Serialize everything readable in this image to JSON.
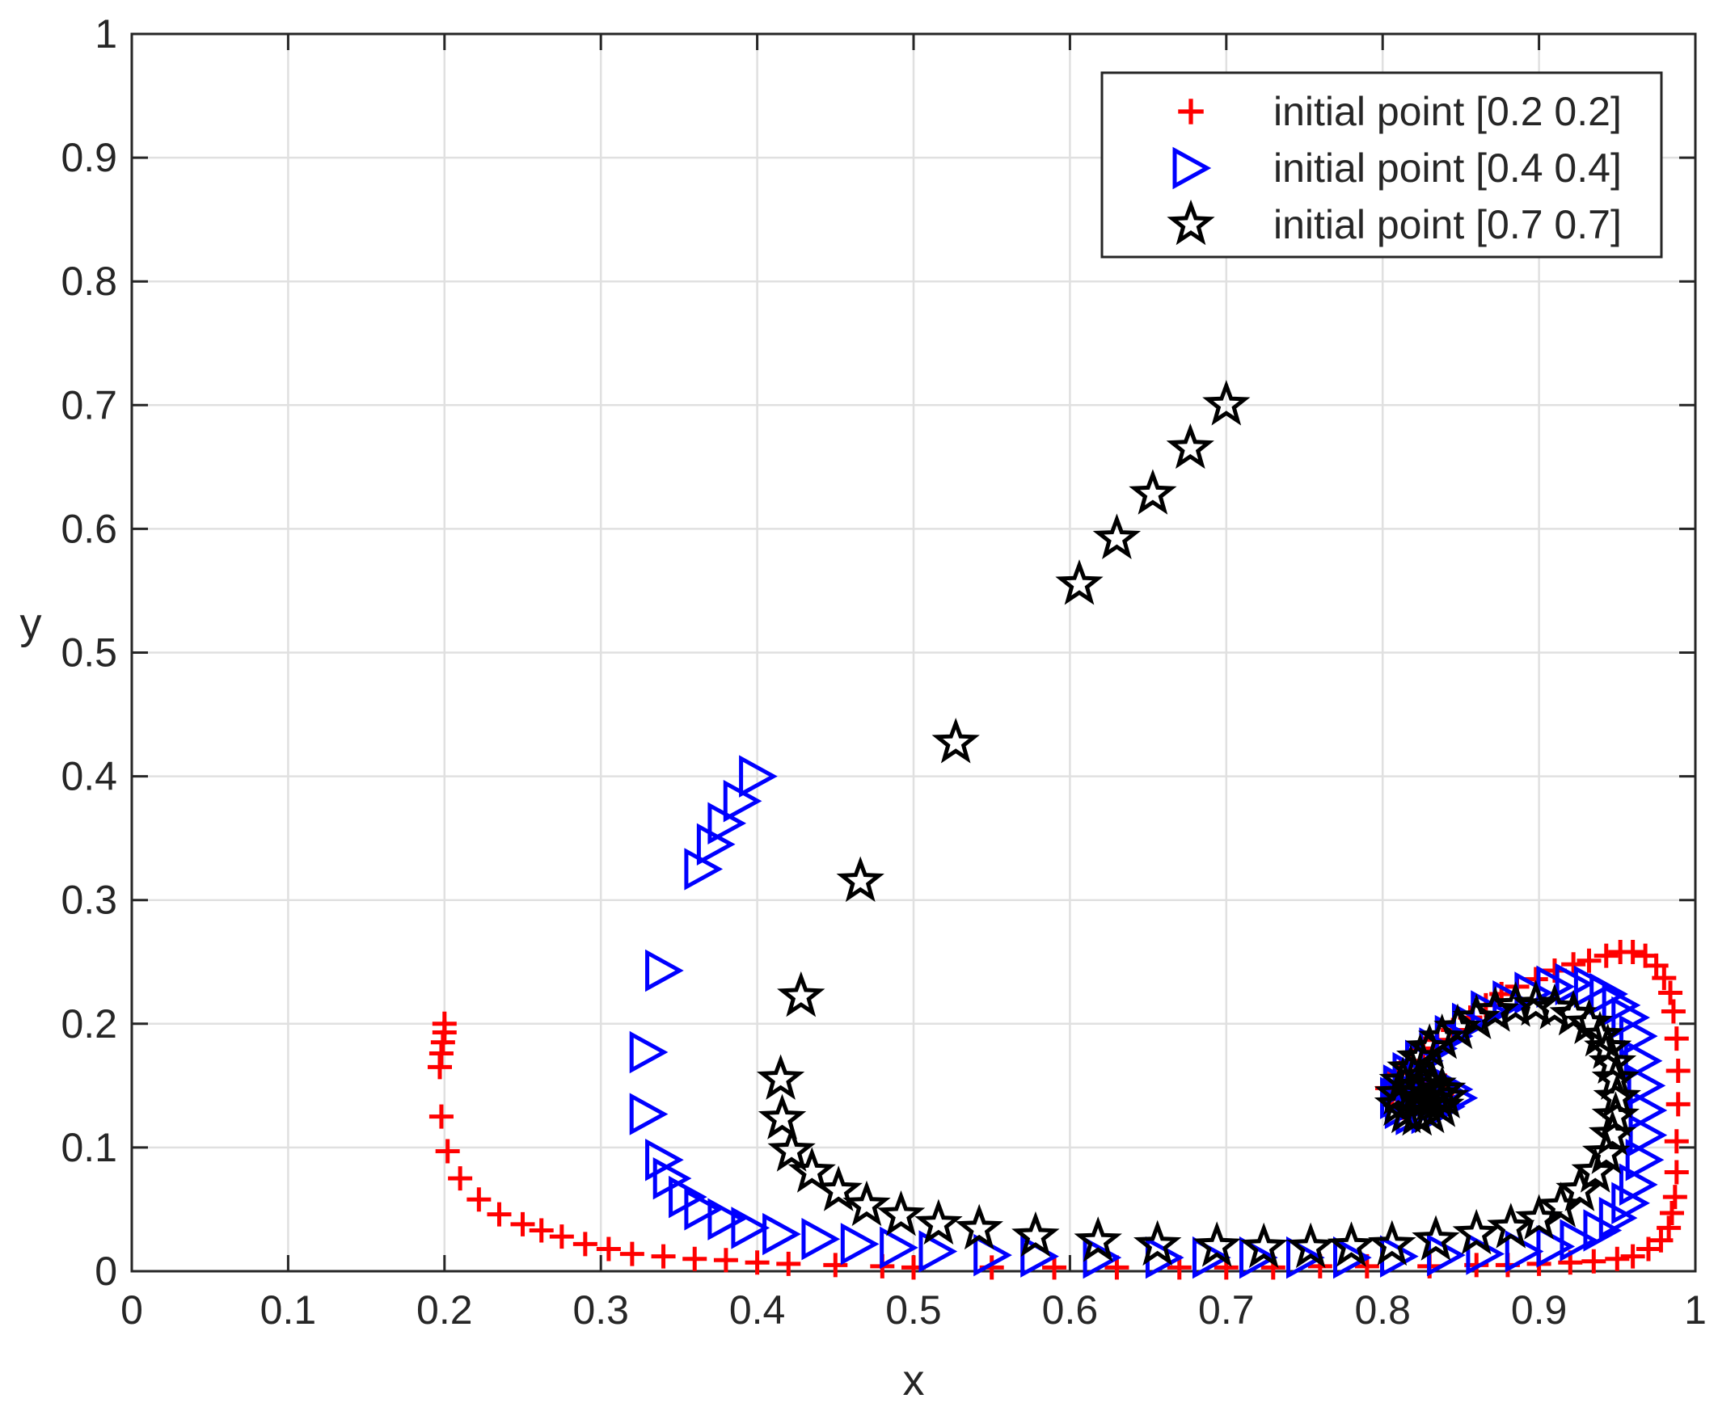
{
  "chart_data": {
    "type": "scatter",
    "title": "",
    "xlabel": "x",
    "ylabel": "y",
    "xlim": [
      0,
      1
    ],
    "ylim": [
      0,
      1
    ],
    "grid": true,
    "legend_position": "top-right",
    "xticks": [
      {
        "value": 0,
        "label": "0"
      },
      {
        "value": 0.1,
        "label": "0.1"
      },
      {
        "value": 0.2,
        "label": "0.2"
      },
      {
        "value": 0.3,
        "label": "0.3"
      },
      {
        "value": 0.4,
        "label": "0.4"
      },
      {
        "value": 0.5,
        "label": "0.5"
      },
      {
        "value": 0.6,
        "label": "0.6"
      },
      {
        "value": 0.7,
        "label": "0.7"
      },
      {
        "value": 0.8,
        "label": "0.8"
      },
      {
        "value": 0.9,
        "label": "0.9"
      },
      {
        "value": 1,
        "label": "1"
      }
    ],
    "yticks": [
      {
        "value": 0,
        "label": "0"
      },
      {
        "value": 0.1,
        "label": "0.1"
      },
      {
        "value": 0.2,
        "label": "0.2"
      },
      {
        "value": 0.3,
        "label": "0.3"
      },
      {
        "value": 0.4,
        "label": "0.4"
      },
      {
        "value": 0.5,
        "label": "0.5"
      },
      {
        "value": 0.6,
        "label": "0.6"
      },
      {
        "value": 0.7,
        "label": "0.7"
      },
      {
        "value": 0.8,
        "label": "0.8"
      },
      {
        "value": 0.9,
        "label": "0.9"
      },
      {
        "value": 1,
        "label": "1"
      }
    ],
    "series": [
      {
        "name": "initial point [0.2 0.2]",
        "marker": "plus",
        "color": "#ff0000",
        "points": [
          [
            0.2,
            0.2
          ],
          [
            0.2,
            0.193
          ],
          [
            0.199,
            0.185
          ],
          [
            0.198,
            0.176
          ],
          [
            0.197,
            0.165
          ],
          [
            0.198,
            0.125
          ],
          [
            0.202,
            0.097
          ],
          [
            0.21,
            0.075
          ],
          [
            0.222,
            0.058
          ],
          [
            0.235,
            0.046
          ],
          [
            0.25,
            0.038
          ],
          [
            0.262,
            0.033
          ],
          [
            0.275,
            0.028
          ],
          [
            0.29,
            0.022
          ],
          [
            0.305,
            0.018
          ],
          [
            0.32,
            0.014
          ],
          [
            0.34,
            0.012
          ],
          [
            0.36,
            0.01
          ],
          [
            0.38,
            0.009
          ],
          [
            0.4,
            0.007
          ],
          [
            0.42,
            0.006
          ],
          [
            0.45,
            0.005
          ],
          [
            0.48,
            0.004
          ],
          [
            0.5,
            0.003
          ],
          [
            0.55,
            0.003
          ],
          [
            0.59,
            0.003
          ],
          [
            0.63,
            0.003
          ],
          [
            0.67,
            0.003
          ],
          [
            0.7,
            0.003
          ],
          [
            0.73,
            0.003
          ],
          [
            0.76,
            0.004
          ],
          [
            0.79,
            0.004
          ],
          [
            0.83,
            0.004
          ],
          [
            0.86,
            0.005
          ],
          [
            0.88,
            0.005
          ],
          [
            0.9,
            0.006
          ],
          [
            0.92,
            0.007
          ],
          [
            0.935,
            0.008
          ],
          [
            0.95,
            0.01
          ],
          [
            0.96,
            0.012
          ],
          [
            0.97,
            0.018
          ],
          [
            0.978,
            0.025
          ],
          [
            0.983,
            0.035
          ],
          [
            0.985,
            0.047
          ],
          [
            0.987,
            0.06
          ],
          [
            0.988,
            0.08
          ],
          [
            0.988,
            0.105
          ],
          [
            0.989,
            0.135
          ],
          [
            0.989,
            0.162
          ],
          [
            0.988,
            0.188
          ],
          [
            0.986,
            0.21
          ],
          [
            0.984,
            0.225
          ],
          [
            0.98,
            0.237
          ],
          [
            0.975,
            0.247
          ],
          [
            0.968,
            0.255
          ],
          [
            0.96,
            0.258
          ],
          [
            0.952,
            0.258
          ],
          [
            0.943,
            0.255
          ],
          [
            0.932,
            0.251
          ],
          [
            0.922,
            0.248
          ],
          [
            0.91,
            0.243
          ],
          [
            0.898,
            0.236
          ],
          [
            0.886,
            0.23
          ],
          [
            0.876,
            0.224
          ],
          [
            0.866,
            0.215
          ],
          [
            0.856,
            0.205
          ],
          [
            0.845,
            0.195
          ],
          [
            0.835,
            0.187
          ],
          [
            0.826,
            0.18
          ],
          [
            0.818,
            0.17
          ],
          [
            0.81,
            0.16
          ],
          [
            0.803,
            0.148
          ],
          [
            0.806,
            0.139
          ],
          [
            0.812,
            0.132
          ],
          [
            0.82,
            0.13
          ],
          [
            0.83,
            0.134
          ],
          [
            0.838,
            0.142
          ],
          [
            0.84,
            0.15
          ],
          [
            0.834,
            0.153
          ],
          [
            0.826,
            0.151
          ],
          [
            0.822,
            0.145
          ],
          [
            0.826,
            0.14
          ],
          [
            0.832,
            0.142
          ]
        ]
      },
      {
        "name": "initial point [0.4 0.4]",
        "marker": "triangle-right",
        "color": "#0000ff",
        "points": [
          [
            0.4,
            0.4
          ],
          [
            0.39,
            0.38
          ],
          [
            0.38,
            0.362
          ],
          [
            0.373,
            0.345
          ],
          [
            0.365,
            0.325
          ],
          [
            0.34,
            0.243
          ],
          [
            0.33,
            0.177
          ],
          [
            0.33,
            0.127
          ],
          [
            0.34,
            0.09
          ],
          [
            0.345,
            0.075
          ],
          [
            0.355,
            0.06
          ],
          [
            0.365,
            0.05
          ],
          [
            0.38,
            0.042
          ],
          [
            0.395,
            0.035
          ],
          [
            0.415,
            0.03
          ],
          [
            0.44,
            0.026
          ],
          [
            0.465,
            0.022
          ],
          [
            0.49,
            0.019
          ],
          [
            0.515,
            0.016
          ],
          [
            0.55,
            0.013
          ],
          [
            0.58,
            0.012
          ],
          [
            0.62,
            0.011
          ],
          [
            0.66,
            0.011
          ],
          [
            0.69,
            0.011
          ],
          [
            0.72,
            0.011
          ],
          [
            0.75,
            0.011
          ],
          [
            0.78,
            0.011
          ],
          [
            0.81,
            0.012
          ],
          [
            0.84,
            0.013
          ],
          [
            0.865,
            0.014
          ],
          [
            0.89,
            0.016
          ],
          [
            0.91,
            0.02
          ],
          [
            0.925,
            0.025
          ],
          [
            0.94,
            0.033
          ],
          [
            0.95,
            0.043
          ],
          [
            0.958,
            0.055
          ],
          [
            0.963,
            0.07
          ],
          [
            0.967,
            0.09
          ],
          [
            0.969,
            0.11
          ],
          [
            0.969,
            0.13
          ],
          [
            0.968,
            0.15
          ],
          [
            0.966,
            0.17
          ],
          [
            0.963,
            0.19
          ],
          [
            0.958,
            0.205
          ],
          [
            0.952,
            0.215
          ],
          [
            0.944,
            0.224
          ],
          [
            0.934,
            0.23
          ],
          [
            0.922,
            0.232
          ],
          [
            0.91,
            0.23
          ],
          [
            0.896,
            0.225
          ],
          [
            0.882,
            0.218
          ],
          [
            0.868,
            0.21
          ],
          [
            0.856,
            0.2
          ],
          [
            0.845,
            0.19
          ],
          [
            0.835,
            0.18
          ],
          [
            0.826,
            0.17
          ],
          [
            0.818,
            0.16
          ],
          [
            0.812,
            0.15
          ],
          [
            0.81,
            0.14
          ],
          [
            0.813,
            0.132
          ],
          [
            0.82,
            0.127
          ],
          [
            0.83,
            0.128
          ],
          [
            0.84,
            0.133
          ],
          [
            0.848,
            0.14
          ],
          [
            0.845,
            0.147
          ],
          [
            0.836,
            0.15
          ],
          [
            0.827,
            0.148
          ],
          [
            0.822,
            0.142
          ],
          [
            0.826,
            0.137
          ],
          [
            0.834,
            0.139
          ]
        ]
      },
      {
        "name": "initial point [0.7 0.7]",
        "marker": "star",
        "color": "#000000",
        "points": [
          [
            0.7,
            0.7
          ],
          [
            0.677,
            0.665
          ],
          [
            0.653,
            0.628
          ],
          [
            0.63,
            0.592
          ],
          [
            0.606,
            0.555
          ],
          [
            0.527,
            0.427
          ],
          [
            0.466,
            0.315
          ],
          [
            0.428,
            0.222
          ],
          [
            0.415,
            0.155
          ],
          [
            0.416,
            0.123
          ],
          [
            0.422,
            0.097
          ],
          [
            0.435,
            0.08
          ],
          [
            0.452,
            0.065
          ],
          [
            0.47,
            0.053
          ],
          [
            0.492,
            0.045
          ],
          [
            0.516,
            0.038
          ],
          [
            0.542,
            0.034
          ],
          [
            0.578,
            0.028
          ],
          [
            0.618,
            0.024
          ],
          [
            0.656,
            0.021
          ],
          [
            0.694,
            0.02
          ],
          [
            0.724,
            0.019
          ],
          [
            0.754,
            0.019
          ],
          [
            0.78,
            0.02
          ],
          [
            0.806,
            0.021
          ],
          [
            0.834,
            0.025
          ],
          [
            0.86,
            0.03
          ],
          [
            0.882,
            0.035
          ],
          [
            0.9,
            0.042
          ],
          [
            0.914,
            0.052
          ],
          [
            0.926,
            0.065
          ],
          [
            0.936,
            0.08
          ],
          [
            0.943,
            0.095
          ],
          [
            0.947,
            0.11
          ],
          [
            0.949,
            0.125
          ],
          [
            0.95,
            0.14
          ],
          [
            0.949,
            0.155
          ],
          [
            0.947,
            0.168
          ],
          [
            0.944,
            0.18
          ],
          [
            0.939,
            0.19
          ],
          [
            0.932,
            0.2
          ],
          [
            0.922,
            0.207
          ],
          [
            0.91,
            0.212
          ],
          [
            0.898,
            0.215
          ],
          [
            0.885,
            0.214
          ],
          [
            0.872,
            0.21
          ],
          [
            0.86,
            0.204
          ],
          [
            0.848,
            0.196
          ],
          [
            0.838,
            0.188
          ],
          [
            0.83,
            0.18
          ],
          [
            0.824,
            0.172
          ],
          [
            0.818,
            0.163
          ],
          [
            0.813,
            0.153
          ],
          [
            0.81,
            0.143
          ],
          [
            0.81,
            0.134
          ],
          [
            0.815,
            0.128
          ],
          [
            0.822,
            0.126
          ],
          [
            0.83,
            0.128
          ],
          [
            0.837,
            0.133
          ],
          [
            0.84,
            0.14
          ],
          [
            0.838,
            0.146
          ],
          [
            0.832,
            0.15
          ],
          [
            0.826,
            0.149
          ],
          [
            0.822,
            0.144
          ],
          [
            0.825,
            0.139
          ],
          [
            0.831,
            0.138
          ],
          [
            0.834,
            0.142
          ]
        ]
      }
    ]
  }
}
